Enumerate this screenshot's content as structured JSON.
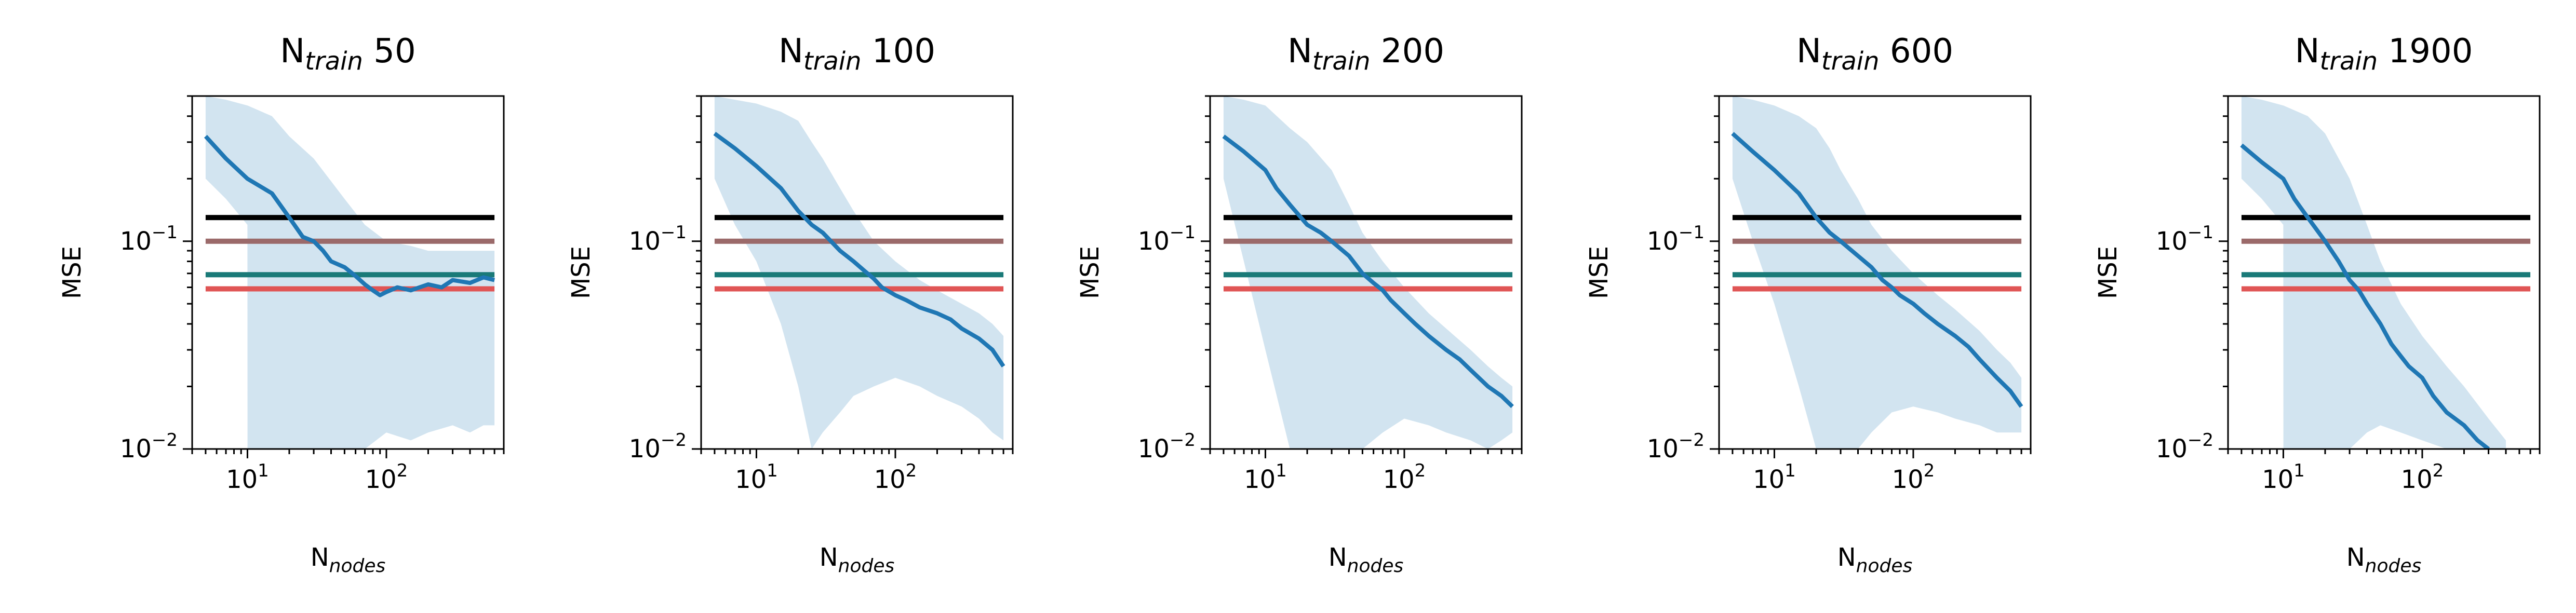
{
  "chart_data": {
    "type": "line",
    "xscale": "log",
    "yscale": "log",
    "xlim": [
      4,
      700
    ],
    "ylim": [
      0.01,
      0.5
    ],
    "grid": false,
    "colors": {
      "mean": "#1f77b4",
      "band": "#1f77b4",
      "ref_black": "#000000",
      "ref_brown": "#9b6a6a",
      "ref_teal": "#1a7a78",
      "ref_red": "#e05555"
    },
    "panels": [
      {
        "title_main": "N",
        "title_sub": "train",
        "title_value": "50",
        "xlabel_main": "N",
        "xlabel_sub": "nodes",
        "ylabel": "MSE",
        "hlines": [
          0.13,
          0.1,
          0.069,
          0.059
        ],
        "mean": {
          "x": [
            5,
            7,
            10,
            15,
            20,
            25,
            30,
            35,
            40,
            50,
            60,
            70,
            80,
            90,
            100,
            120,
            150,
            200,
            250,
            300,
            400,
            500,
            600
          ],
          "y": [
            0.32,
            0.25,
            0.2,
            0.17,
            0.13,
            0.105,
            0.1,
            0.09,
            0.08,
            0.075,
            0.068,
            0.062,
            0.058,
            0.055,
            0.057,
            0.06,
            0.058,
            0.062,
            0.06,
            0.065,
            0.063,
            0.067,
            0.065
          ]
        },
        "band": {
          "x": [
            5,
            7,
            10,
            10.01,
            15,
            20,
            20.01,
            30,
            50,
            70,
            100,
            150,
            200,
            300,
            400,
            500,
            600
          ],
          "upper": [
            0.5,
            0.48,
            0.45,
            0.45,
            0.4,
            0.32,
            0.32,
            0.25,
            0.16,
            0.12,
            0.1,
            0.095,
            0.09,
            0.09,
            0.09,
            0.09,
            0.09
          ],
          "lower": [
            0.2,
            0.16,
            0.12,
            0.002,
            0.002,
            0.002,
            0.004,
            0.006,
            0.008,
            0.01,
            0.012,
            0.011,
            0.012,
            0.013,
            0.012,
            0.013,
            0.013
          ]
        }
      },
      {
        "title_main": "N",
        "title_sub": "train",
        "title_value": "100",
        "xlabel_main": "N",
        "xlabel_sub": "nodes",
        "ylabel": "MSE",
        "hlines": [
          0.13,
          0.1,
          0.069,
          0.059
        ],
        "mean": {
          "x": [
            5,
            7,
            10,
            15,
            20,
            25,
            30,
            40,
            50,
            60,
            70,
            80,
            100,
            120,
            150,
            200,
            250,
            300,
            400,
            500,
            600
          ],
          "y": [
            0.33,
            0.28,
            0.23,
            0.18,
            0.14,
            0.12,
            0.11,
            0.09,
            0.08,
            0.072,
            0.066,
            0.06,
            0.055,
            0.052,
            0.048,
            0.045,
            0.042,
            0.038,
            0.034,
            0.03,
            0.025
          ]
        },
        "band": {
          "x": [
            5,
            7,
            10,
            15,
            20,
            25,
            30,
            40,
            50,
            70,
            100,
            150,
            200,
            300,
            400,
            500,
            600
          ],
          "upper": [
            0.5,
            0.48,
            0.46,
            0.42,
            0.38,
            0.3,
            0.25,
            0.18,
            0.14,
            0.1,
            0.08,
            0.065,
            0.058,
            0.05,
            0.045,
            0.04,
            0.035
          ],
          "lower": [
            0.2,
            0.12,
            0.08,
            0.04,
            0.02,
            0.01,
            0.012,
            0.015,
            0.018,
            0.02,
            0.022,
            0.02,
            0.018,
            0.016,
            0.014,
            0.012,
            0.011
          ]
        }
      },
      {
        "title_main": "N",
        "title_sub": "train",
        "title_value": "200",
        "xlabel_main": "N",
        "xlabel_sub": "nodes",
        "ylabel": "MSE",
        "hlines": [
          0.13,
          0.1,
          0.069,
          0.059
        ],
        "mean": {
          "x": [
            5,
            7,
            10,
            12,
            15,
            20,
            25,
            30,
            40,
            50,
            60,
            70,
            80,
            100,
            120,
            150,
            200,
            250,
            300,
            400,
            500,
            600
          ],
          "y": [
            0.32,
            0.27,
            0.22,
            0.18,
            0.15,
            0.12,
            0.11,
            0.1,
            0.085,
            0.07,
            0.063,
            0.058,
            0.052,
            0.045,
            0.04,
            0.035,
            0.03,
            0.027,
            0.024,
            0.02,
            0.018,
            0.016
          ]
        },
        "band": {
          "x": [
            5,
            7,
            10,
            15,
            20,
            30,
            40,
            50,
            70,
            100,
            150,
            200,
            300,
            400,
            500,
            600
          ],
          "upper": [
            0.5,
            0.48,
            0.45,
            0.35,
            0.3,
            0.22,
            0.15,
            0.11,
            0.08,
            0.06,
            0.045,
            0.038,
            0.03,
            0.025,
            0.022,
            0.02
          ],
          "lower": [
            0.2,
            0.08,
            0.03,
            0.01,
            0.005,
            0.006,
            0.008,
            0.01,
            0.012,
            0.014,
            0.013,
            0.012,
            0.011,
            0.01,
            0.011,
            0.012
          ]
        }
      },
      {
        "title_main": "N",
        "title_sub": "train",
        "title_value": "600",
        "xlabel_main": "N",
        "xlabel_sub": "nodes",
        "ylabel": "MSE",
        "hlines": [
          0.13,
          0.1,
          0.069,
          0.059
        ],
        "mean": {
          "x": [
            5,
            7,
            10,
            15,
            20,
            25,
            30,
            40,
            50,
            60,
            70,
            80,
            100,
            120,
            150,
            200,
            250,
            300,
            400,
            500,
            600
          ],
          "y": [
            0.33,
            0.27,
            0.22,
            0.17,
            0.13,
            0.11,
            0.1,
            0.085,
            0.075,
            0.065,
            0.06,
            0.055,
            0.05,
            0.045,
            0.04,
            0.035,
            0.031,
            0.027,
            0.022,
            0.019,
            0.016
          ]
        },
        "band": {
          "x": [
            5,
            7,
            10,
            15,
            20,
            25,
            30,
            40,
            50,
            70,
            100,
            150,
            200,
            300,
            400,
            500,
            600
          ],
          "upper": [
            0.5,
            0.48,
            0.45,
            0.4,
            0.35,
            0.28,
            0.22,
            0.16,
            0.12,
            0.09,
            0.07,
            0.055,
            0.047,
            0.037,
            0.03,
            0.026,
            0.022
          ],
          "lower": [
            0.2,
            0.1,
            0.05,
            0.02,
            0.008,
            0.006,
            0.008,
            0.01,
            0.012,
            0.015,
            0.016,
            0.015,
            0.014,
            0.013,
            0.012,
            0.012,
            0.012
          ]
        }
      },
      {
        "title_main": "N",
        "title_sub": "train",
        "title_value": "1900",
        "xlabel_main": "N",
        "xlabel_sub": "nodes",
        "ylabel": "MSE",
        "hlines": [
          0.13,
          0.1,
          0.069,
          0.059
        ],
        "mean": {
          "x": [
            5,
            7,
            10,
            12,
            15,
            20,
            25,
            30,
            35,
            40,
            50,
            60,
            70,
            80,
            100,
            120,
            150,
            200,
            250,
            300
          ],
          "y": [
            0.29,
            0.24,
            0.2,
            0.16,
            0.13,
            0.1,
            0.08,
            0.065,
            0.058,
            0.05,
            0.04,
            0.032,
            0.028,
            0.025,
            0.022,
            0.018,
            0.015,
            0.013,
            0.011,
            0.01
          ]
        },
        "band": {
          "x": [
            5,
            7,
            10,
            10.01,
            15,
            20,
            30,
            40,
            50,
            70,
            100,
            150,
            200,
            300,
            400
          ],
          "upper": [
            0.5,
            0.48,
            0.45,
            0.45,
            0.4,
            0.33,
            0.2,
            0.12,
            0.08,
            0.05,
            0.035,
            0.025,
            0.02,
            0.014,
            0.011
          ],
          "lower": [
            0.2,
            0.16,
            0.12,
            0.004,
            0.004,
            0.006,
            0.01,
            0.012,
            0.013,
            0.012,
            0.011,
            0.01,
            0.009,
            0.008,
            0.008
          ]
        }
      }
    ]
  }
}
